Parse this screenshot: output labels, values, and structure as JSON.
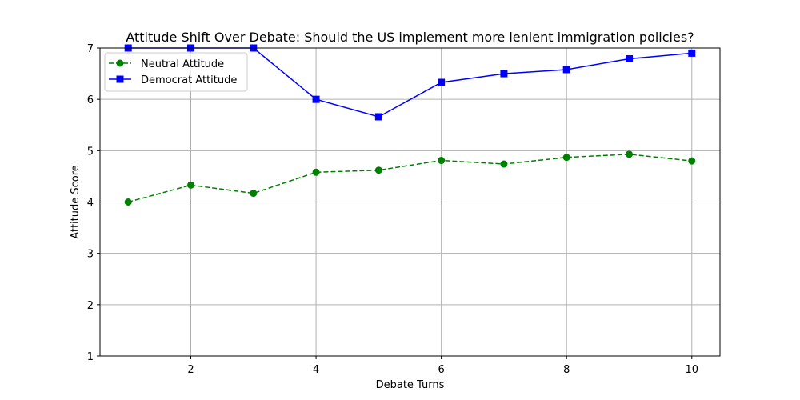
{
  "chart_data": {
    "type": "line",
    "title": "Attitude Shift Over Debate: Should the US implement more lenient immigration policies?",
    "xlabel": "Debate Turns",
    "ylabel": "Attitude Score",
    "xlim": [
      0.55,
      10.45
    ],
    "ylim": [
      1,
      7
    ],
    "xticks": [
      2,
      4,
      6,
      8,
      10
    ],
    "yticks": [
      1,
      2,
      3,
      4,
      5,
      6,
      7
    ],
    "grid": true,
    "legend_position": "top-left",
    "x": [
      1,
      2,
      3,
      4,
      5,
      6,
      7,
      8,
      9,
      10
    ],
    "series": [
      {
        "name": "Neutral Attitude",
        "color": "#008000",
        "line_style": "dashed",
        "marker": "circle",
        "values": [
          4.0,
          4.33,
          4.17,
          4.58,
          4.62,
          4.81,
          4.74,
          4.87,
          4.93,
          4.8
        ]
      },
      {
        "name": "Democrat Attitude",
        "color": "#0000ff",
        "line_style": "solid",
        "marker": "square",
        "values": [
          7.0,
          7.0,
          7.0,
          6.0,
          5.66,
          6.33,
          6.5,
          6.58,
          6.79,
          6.9
        ]
      }
    ]
  }
}
